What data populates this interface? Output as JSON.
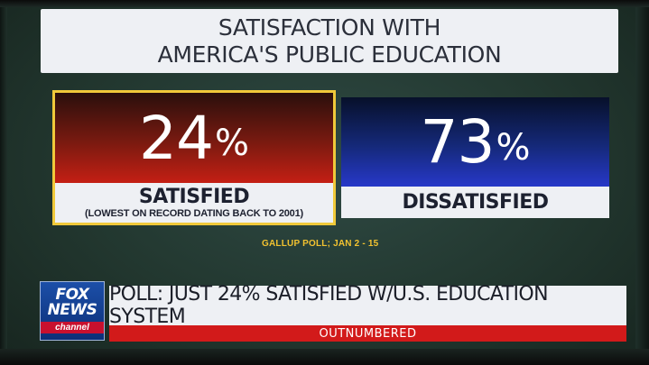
{
  "title": {
    "line1": "SATISFACTION WITH",
    "line2": "AMERICA'S PUBLIC EDUCATION"
  },
  "satisfied": {
    "value": "24",
    "percent_sign": "%",
    "label": "SATISFIED",
    "note": "(LOWEST ON RECORD DATING BACK TO 2001)"
  },
  "dissatisfied": {
    "value": "73",
    "percent_sign": "%",
    "label": "DISSATISFIED"
  },
  "source": "GALLUP POLL; JAN 2 - 15",
  "lower_third": {
    "headline": "POLL: JUST 24% SATISFIED W/U.S. EDUCATION SYSTEM",
    "show": "OUTNUMBERED"
  },
  "logo": {
    "line1": "FOX",
    "line2": "NEWS",
    "line3": "channel"
  },
  "colors": {
    "satisfied_red": "#c41f14",
    "dissatisfied_blue": "#2738c9",
    "highlight_border": "#f0c93a",
    "show_bar_red": "#d21a1a"
  }
}
